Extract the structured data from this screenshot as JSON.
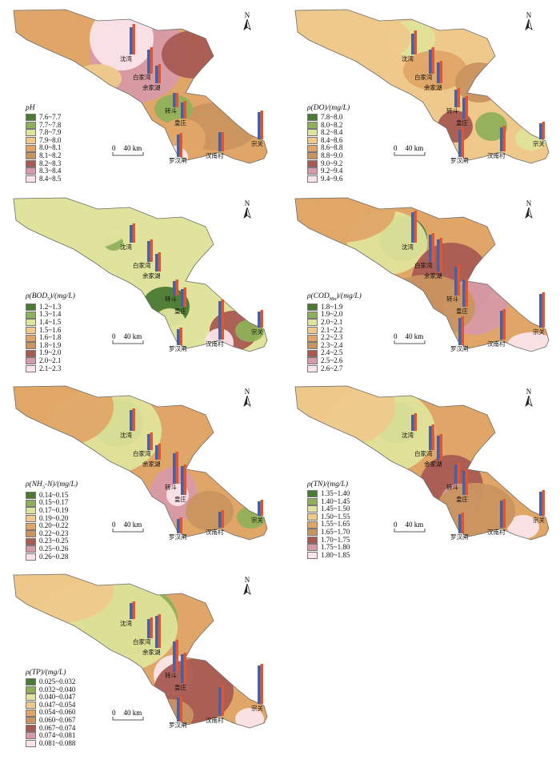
{
  "colors": {
    "outline": "#6b6b6b",
    "bar_blue": "#3e64ad",
    "bar_red": "#e2552e",
    "ramp_9": [
      "#4a7a33",
      "#8fb05a",
      "#dfe39b",
      "#eec98b",
      "#e0a667",
      "#c99460",
      "#a85a52",
      "#d79aa6",
      "#fbe4ea"
    ],
    "ramp_10": [
      "#4a7a33",
      "#8fb05a",
      "#dfe39b",
      "#e8d79a",
      "#eec98b",
      "#e0a667",
      "#c99460",
      "#a85a52",
      "#d79aa6",
      "#fbe4ea"
    ]
  },
  "sites": [
    "沈湾",
    "白家湾",
    "余家湖",
    "转斗",
    "皇庄",
    "罗汉闸",
    "汉南村",
    "宗关"
  ],
  "north_label": "N",
  "scale_label": "40 km",
  "scale_zero": "0",
  "panels": [
    {
      "title_prefix": "pH",
      "title_sub": "",
      "title_suffix": "",
      "classes": [
        "7.6~7.7",
        "7.7~7.8",
        "7.8~7.9",
        "7.9~8.0",
        "8.0~8.1",
        "8.1~8.2",
        "8.2~8.3",
        "8.3~8.4",
        "8.4~8.5"
      ]
    },
    {
      "title_prefix": "ρ(DO)/(mg/L)",
      "title_sub": "",
      "title_suffix": "",
      "classes": [
        "7.8~8.0",
        "8.0~8.2",
        "8.2~8.4",
        "8.4~8.6",
        "8.6~8.8",
        "8.8~9.0",
        "9.0~9.2",
        "9.2~9.4",
        "9.4~9.6"
      ]
    },
    {
      "title_prefix": "ρ(BOD",
      "title_sub": "5",
      "title_suffix": ")/(mg/L)",
      "classes": [
        "1.2~1.3",
        "1.3~1.4",
        "1.4~1.5",
        "1.5~1.6",
        "1.6~1.8",
        "1.8~1.9",
        "1.9~2.0",
        "2.0~2.1",
        "2.1~2.3"
      ]
    },
    {
      "title_prefix": "ρ(COD",
      "title_sub": "Mn",
      "title_suffix": ")/(mg/L)",
      "classes": [
        "1.8~1.9",
        "1.9~2.0",
        "2.0~2.1",
        "2.1~2.2",
        "2.2~2.3",
        "2.3~2.4",
        "2.4~2.5",
        "2.5~2.6",
        "2.6~2.7"
      ]
    },
    {
      "title_prefix": "ρ(NH",
      "title_sub": "3",
      "title_suffix": "-N)/(mg/L)",
      "classes": [
        "0.14~0.15",
        "0.15~0.17",
        "0.17~0.19",
        "0.19~0.20",
        "0.20~0.22",
        "0.22~0.23",
        "0.23~0.25",
        "0.25~0.26",
        "0.26~0.28"
      ]
    },
    {
      "title_prefix": "ρ(TN)/(mg/L)",
      "title_sub": "",
      "title_suffix": "",
      "classes": [
        "1.35~1.40",
        "1.40~1.45",
        "1.45~1.50",
        "1.50~1.55",
        "1.55~1.65",
        "1.65~1.70",
        "1.70~1.75",
        "1.75~1.80",
        "1.80~1.85"
      ]
    },
    {
      "title_prefix": "ρ(TP)/(mg/L)",
      "title_sub": "",
      "title_suffix": "",
      "classes": [
        "0.025~0.032",
        "0.032~0.040",
        "0.040~0.047",
        "0.047~0.054",
        "0.054~0.060",
        "0.060~0.067",
        "0.067~0.074",
        "0.074~0.081",
        "0.081~0.088"
      ]
    }
  ]
}
